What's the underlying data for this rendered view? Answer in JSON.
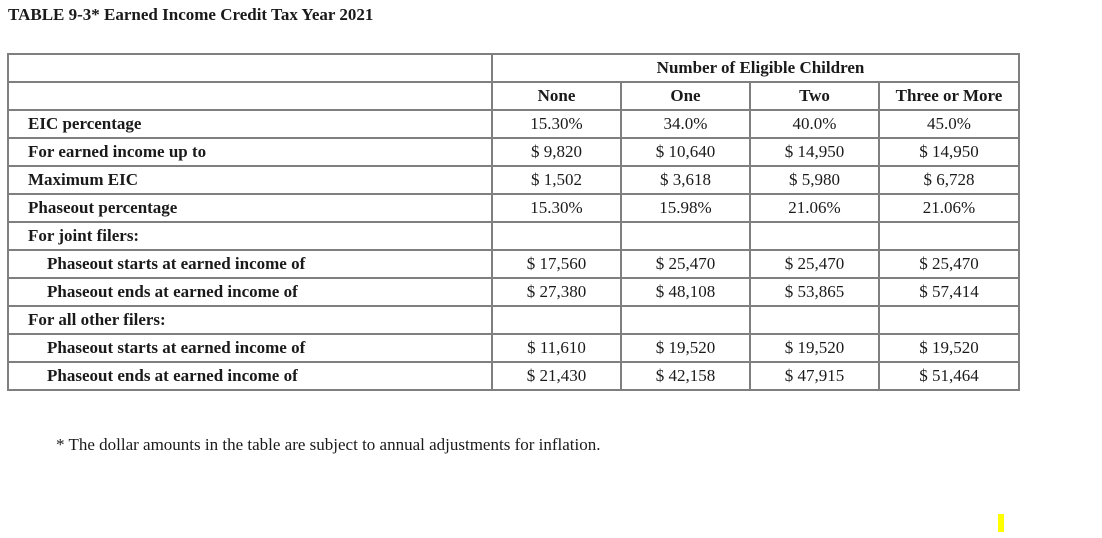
{
  "title": "TABLE 9-3* Earned Income Credit Tax Year 2021",
  "group_header": "Number of Eligible Children",
  "columns": [
    "None",
    "One",
    "Two",
    "Three or More"
  ],
  "rows": [
    {
      "label": "EIC percentage",
      "indent": false,
      "values": [
        "15.30%",
        "34.0%",
        "40.0%",
        "45.0%"
      ]
    },
    {
      "label": "For earned income up to",
      "indent": false,
      "values": [
        "$ 9,820",
        "$ 10,640",
        "$ 14,950",
        "$ 14,950"
      ]
    },
    {
      "label": "Maximum EIC",
      "indent": false,
      "values": [
        "$ 1,502",
        "$ 3,618",
        "$ 5,980",
        "$ 6,728"
      ]
    },
    {
      "label": "Phaseout percentage",
      "indent": false,
      "values": [
        "15.30%",
        "15.98%",
        "21.06%",
        "21.06%"
      ]
    },
    {
      "label": "For joint filers:",
      "indent": false,
      "values": [
        "",
        "",
        "",
        ""
      ]
    },
    {
      "label": "Phaseout starts at earned income of",
      "indent": true,
      "values": [
        "$ 17,560",
        "$ 25,470",
        "$ 25,470",
        "$ 25,470"
      ]
    },
    {
      "label": "Phaseout ends at earned income of",
      "indent": true,
      "values": [
        "$ 27,380",
        "$ 48,108",
        "$ 53,865",
        "$ 57,414"
      ]
    },
    {
      "label": "For all other filers:",
      "indent": false,
      "values": [
        "",
        "",
        "",
        ""
      ]
    },
    {
      "label": "Phaseout starts at earned income of",
      "indent": true,
      "values": [
        "$ 11,610",
        "$ 19,520",
        "$ 19,520",
        "$ 19,520"
      ]
    },
    {
      "label": "Phaseout ends at earned income of",
      "indent": true,
      "values": [
        "$ 21,430",
        "$ 42,158",
        "$ 47,915",
        "$ 51,464"
      ]
    }
  ],
  "footnote": "* The dollar amounts in the table are subject to annual adjustments for inflation.",
  "colors": {
    "border": "#7f7f7f",
    "text": "#1a1a1a",
    "marker": "#ffff00"
  }
}
